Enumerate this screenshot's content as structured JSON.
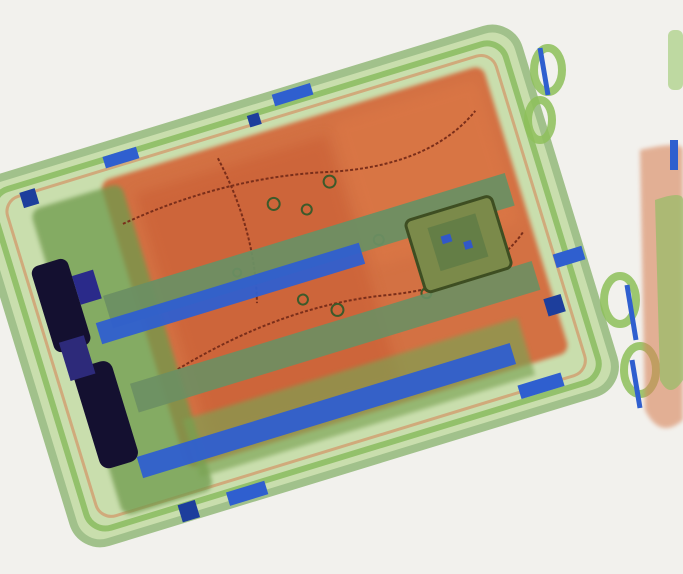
{
  "image": {
    "kind": "x-ray baggage scan",
    "subject": "suitcase",
    "background_color": "#f2f1ed",
    "palette": {
      "organic": "#d4683a",
      "organic_dark": "#b94a28",
      "mixed": "#6e9a4c",
      "light_edges": "#9acb5c",
      "inorganic": "#2f5fcf",
      "dense": "#141030"
    }
  }
}
